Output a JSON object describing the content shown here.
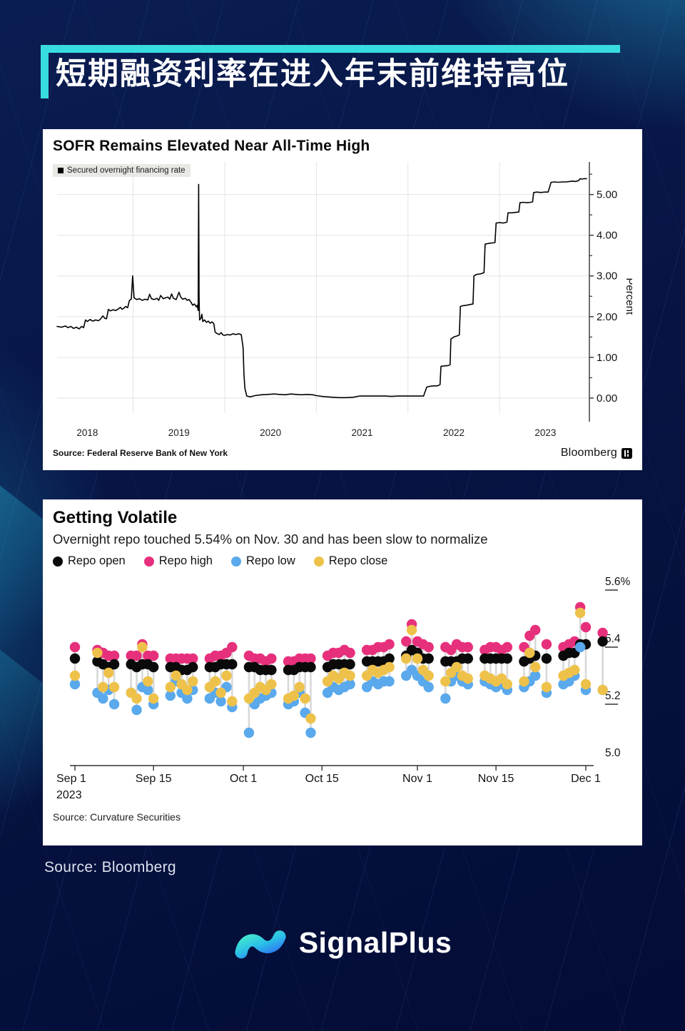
{
  "page": {
    "title": "短期融资利率在进入年末前维持高位",
    "source_note": "Source: Bloomberg",
    "brand": "SignalPlus",
    "colors": {
      "background": "#071342",
      "accent_cyan": "#38dbe0",
      "card": "#ffffff"
    }
  },
  "chart_data": [
    {
      "type": "line",
      "title": "SOFR Remains Elevated Near All-Time High",
      "legend": "Secured overnight financing rate",
      "ylabel": "Percent",
      "y_ticks": [
        0,
        1,
        2,
        3,
        4,
        5
      ],
      "y_tick_labels": [
        "0.00",
        "1.00",
        "2.00",
        "3.00",
        "4.00",
        "5.00"
      ],
      "x_tick_labels": [
        "2018",
        "2019",
        "2020",
        "2021",
        "2022",
        "2023"
      ],
      "x_range": [
        2018.17,
        2023.98
      ],
      "y_range": [
        -0.58,
        5.8
      ],
      "grid": true,
      "legend_position": "top-left",
      "axis_side": "right",
      "line_color": "#000000",
      "grid_color": "#e3e3e0",
      "source": "Source: Federal Reserve Bank of New York",
      "brand": "Bloomberg",
      "points": [
        [
          2018.17,
          1.76
        ],
        [
          2018.22,
          1.74
        ],
        [
          2018.26,
          1.77
        ],
        [
          2018.29,
          1.73
        ],
        [
          2018.32,
          1.76
        ],
        [
          2018.35,
          1.71
        ],
        [
          2018.38,
          1.74
        ],
        [
          2018.41,
          1.7
        ],
        [
          2018.44,
          1.76
        ],
        [
          2018.46,
          1.73
        ],
        [
          2018.48,
          1.92
        ],
        [
          2018.5,
          1.88
        ],
        [
          2018.53,
          1.93
        ],
        [
          2018.56,
          1.89
        ],
        [
          2018.59,
          1.92
        ],
        [
          2018.62,
          1.9
        ],
        [
          2018.64,
          1.93
        ],
        [
          2018.67,
          2.02
        ],
        [
          2018.69,
          1.96
        ],
        [
          2018.71,
          1.95
        ],
        [
          2018.73,
          2.18
        ],
        [
          2018.75,
          2.14
        ],
        [
          2018.78,
          2.17
        ],
        [
          2018.81,
          2.15
        ],
        [
          2018.84,
          2.19
        ],
        [
          2018.86,
          2.23
        ],
        [
          2018.88,
          2.18
        ],
        [
          2018.9,
          2.21
        ],
        [
          2018.92,
          2.25
        ],
        [
          2018.94,
          2.22
        ],
        [
          2018.96,
          2.4
        ],
        [
          2018.98,
          2.43
        ],
        [
          2018.995,
          3.0
        ],
        [
          2019.01,
          2.46
        ],
        [
          2019.04,
          2.42
        ],
        [
          2019.07,
          2.44
        ],
        [
          2019.1,
          2.4
        ],
        [
          2019.13,
          2.43
        ],
        [
          2019.16,
          2.41
        ],
        [
          2019.18,
          2.55
        ],
        [
          2019.2,
          2.44
        ],
        [
          2019.23,
          2.42
        ],
        [
          2019.26,
          2.45
        ],
        [
          2019.28,
          2.4
        ],
        [
          2019.3,
          2.52
        ],
        [
          2019.33,
          2.44
        ],
        [
          2019.35,
          2.46
        ],
        [
          2019.38,
          2.48
        ],
        [
          2019.4,
          2.43
        ],
        [
          2019.42,
          2.56
        ],
        [
          2019.44,
          2.45
        ],
        [
          2019.47,
          2.42
        ],
        [
          2019.5,
          2.6
        ],
        [
          2019.52,
          2.48
        ],
        [
          2019.54,
          2.43
        ],
        [
          2019.57,
          2.45
        ],
        [
          2019.59,
          2.4
        ],
        [
          2019.61,
          2.42
        ],
        [
          2019.63,
          2.36
        ],
        [
          2019.65,
          2.28
        ],
        [
          2019.67,
          2.31
        ],
        [
          2019.69,
          2.24
        ],
        [
          2019.7,
          2.28
        ],
        [
          2019.71,
          2.15
        ],
        [
          2019.715,
          5.25
        ],
        [
          2019.72,
          2.5
        ],
        [
          2019.725,
          1.92
        ],
        [
          2019.74,
          1.96
        ],
        [
          2019.75,
          2.06
        ],
        [
          2019.76,
          1.88
        ],
        [
          2019.78,
          1.92
        ],
        [
          2019.8,
          1.86
        ],
        [
          2019.82,
          1.89
        ],
        [
          2019.84,
          1.84
        ],
        [
          2019.86,
          1.87
        ],
        [
          2019.88,
          1.83
        ],
        [
          2019.895,
          1.62
        ],
        [
          2019.92,
          1.58
        ],
        [
          2019.94,
          1.56
        ],
        [
          2019.96,
          1.61
        ],
        [
          2019.98,
          1.55
        ],
        [
          2020.0,
          1.54
        ],
        [
          2020.03,
          1.56
        ],
        [
          2020.06,
          1.55
        ],
        [
          2020.09,
          1.58
        ],
        [
          2020.12,
          1.56
        ],
        [
          2020.15,
          1.58
        ],
        [
          2020.18,
          1.56
        ],
        [
          2020.2,
          1.24
        ],
        [
          2020.21,
          0.58
        ],
        [
          2020.22,
          0.24
        ],
        [
          2020.24,
          0.05
        ],
        [
          2020.28,
          0.03
        ],
        [
          2020.33,
          0.06
        ],
        [
          2020.4,
          0.08
        ],
        [
          2020.47,
          0.09
        ],
        [
          2020.54,
          0.1
        ],
        [
          2020.6,
          0.09
        ],
        [
          2020.66,
          0.08
        ],
        [
          2020.72,
          0.1
        ],
        [
          2020.78,
          0.09
        ],
        [
          2020.84,
          0.08
        ],
        [
          2020.9,
          0.09
        ],
        [
          2020.96,
          0.08
        ],
        [
          2021.0,
          0.06
        ],
        [
          2021.06,
          0.04
        ],
        [
          2021.12,
          0.03
        ],
        [
          2021.18,
          0.02
        ],
        [
          2021.25,
          0.01
        ],
        [
          2021.33,
          0.01
        ],
        [
          2021.4,
          0.02
        ],
        [
          2021.47,
          0.05
        ],
        [
          2021.54,
          0.05
        ],
        [
          2021.61,
          0.05
        ],
        [
          2021.68,
          0.05
        ],
        [
          2021.75,
          0.05
        ],
        [
          2021.82,
          0.04
        ],
        [
          2021.89,
          0.05
        ],
        [
          2021.96,
          0.05
        ],
        [
          2022.03,
          0.05
        ],
        [
          2022.1,
          0.05
        ],
        [
          2022.17,
          0.05
        ],
        [
          2022.205,
          0.27
        ],
        [
          2022.24,
          0.29
        ],
        [
          2022.28,
          0.3
        ],
        [
          2022.32,
          0.3
        ],
        [
          2022.35,
          0.33
        ],
        [
          2022.36,
          0.78
        ],
        [
          2022.4,
          0.79
        ],
        [
          2022.44,
          0.8
        ],
        [
          2022.46,
          0.82
        ],
        [
          2022.468,
          1.45
        ],
        [
          2022.5,
          1.5
        ],
        [
          2022.54,
          1.53
        ],
        [
          2022.56,
          1.55
        ],
        [
          2022.572,
          2.25
        ],
        [
          2022.6,
          2.27
        ],
        [
          2022.64,
          2.28
        ],
        [
          2022.68,
          2.3
        ],
        [
          2022.71,
          2.31
        ],
        [
          2022.72,
          3.0
        ],
        [
          2022.75,
          3.04
        ],
        [
          2022.79,
          3.05
        ],
        [
          2022.83,
          3.08
        ],
        [
          2022.842,
          3.78
        ],
        [
          2022.88,
          3.8
        ],
        [
          2022.92,
          3.81
        ],
        [
          2022.95,
          3.82
        ],
        [
          2022.962,
          4.3
        ],
        [
          2023.0,
          4.31
        ],
        [
          2023.04,
          4.3
        ],
        [
          2023.08,
          4.32
        ],
        [
          2023.092,
          4.55
        ],
        [
          2023.13,
          4.55
        ],
        [
          2023.17,
          4.56
        ],
        [
          2023.21,
          4.57
        ],
        [
          2023.222,
          4.8
        ],
        [
          2023.26,
          4.81
        ],
        [
          2023.3,
          4.8
        ],
        [
          2023.34,
          4.81
        ],
        [
          2023.36,
          4.82
        ],
        [
          2023.372,
          5.05
        ],
        [
          2023.41,
          5.06
        ],
        [
          2023.45,
          5.05
        ],
        [
          2023.49,
          5.06
        ],
        [
          2023.53,
          5.06
        ],
        [
          2023.562,
          5.3
        ],
        [
          2023.6,
          5.31
        ],
        [
          2023.64,
          5.3
        ],
        [
          2023.68,
          5.31
        ],
        [
          2023.72,
          5.31
        ],
        [
          2023.76,
          5.32
        ],
        [
          2023.8,
          5.33
        ],
        [
          2023.83,
          5.32
        ],
        [
          2023.86,
          5.34
        ],
        [
          2023.88,
          5.39
        ],
        [
          2023.9,
          5.38
        ],
        [
          2023.92,
          5.39
        ],
        [
          2023.95,
          5.39
        ]
      ]
    },
    {
      "type": "scatter",
      "title": "Getting Volatile",
      "subtitle": "Overnight repo touched 5.54% on Nov. 30 and has been slow to normalize",
      "legend": [
        {
          "label": "Repo open",
          "color": "#0a0a0a"
        },
        {
          "label": "Repo high",
          "color": "#e7307c"
        },
        {
          "label": "Repo low",
          "color": "#5aa9ec"
        },
        {
          "label": "Repo close",
          "color": "#eec24a"
        }
      ],
      "y_tick_labels": [
        "5.6%",
        "5.4",
        "5.2",
        "5.0"
      ],
      "y_tick_values": [
        5.6,
        5.4,
        5.2,
        5.0
      ],
      "x_ticks": [
        {
          "label": "Sep 1",
          "sublabel": "2023",
          "day": 0
        },
        {
          "label": "Sep 15",
          "day": 14
        },
        {
          "label": "Oct 1",
          "day": 30
        },
        {
          "label": "Oct 15",
          "day": 44
        },
        {
          "label": "Nov 1",
          "day": 61
        },
        {
          "label": "Nov 15",
          "day": 75
        },
        {
          "label": "Dec 1",
          "day": 91
        }
      ],
      "x_range_days": [
        -2,
        96
      ],
      "y_range": [
        4.99,
        5.62
      ],
      "stem_color": "#d8d8d8",
      "source": "Source: Curvature Securities",
      "days": {
        "dates": [
          "Sep 1",
          "Sep 5",
          "Sep 6",
          "Sep 7",
          "Sep 8",
          "Sep 11",
          "Sep 12",
          "Sep 13",
          "Sep 14",
          "Sep 15",
          "Sep 18",
          "Sep 19",
          "Sep 20",
          "Sep 21",
          "Sep 22",
          "Sep 25",
          "Sep 26",
          "Sep 27",
          "Sep 28",
          "Sep 29",
          "Oct 2",
          "Oct 3",
          "Oct 4",
          "Oct 5",
          "Oct 6",
          "Oct 9",
          "Oct 10",
          "Oct 11",
          "Oct 12",
          "Oct 13",
          "Oct 16",
          "Oct 17",
          "Oct 18",
          "Oct 19",
          "Oct 20",
          "Oct 23",
          "Oct 24",
          "Oct 25",
          "Oct 26",
          "Oct 27",
          "Oct 30",
          "Oct 31",
          "Nov 1",
          "Nov 2",
          "Nov 3",
          "Nov 6",
          "Nov 7",
          "Nov 8",
          "Nov 9",
          "Nov 10",
          "Nov 13",
          "Nov 14",
          "Nov 15",
          "Nov 16",
          "Nov 17",
          "Nov 20",
          "Nov 21",
          "Nov 22",
          "Nov 24",
          "Nov 27",
          "Nov 28",
          "Nov 29",
          "Nov 30",
          "Dec 1",
          "Dec 4"
        ],
        "x": [
          0,
          4,
          5,
          6,
          7,
          10,
          11,
          12,
          13,
          14,
          17,
          18,
          19,
          20,
          21,
          24,
          25,
          26,
          27,
          28,
          31,
          32,
          33,
          34,
          35,
          38,
          39,
          40,
          41,
          42,
          45,
          46,
          47,
          48,
          49,
          52,
          53,
          54,
          55,
          56,
          59,
          60,
          61,
          62,
          63,
          66,
          67,
          68,
          69,
          70,
          73,
          74,
          75,
          76,
          77,
          80,
          81,
          82,
          84,
          87,
          88,
          89,
          90,
          91,
          94
        ],
        "open": [
          5.36,
          5.35,
          5.34,
          5.33,
          5.34,
          5.34,
          5.33,
          5.34,
          5.34,
          5.33,
          5.33,
          5.33,
          5.32,
          5.32,
          5.33,
          5.33,
          5.33,
          5.34,
          5.34,
          5.34,
          5.33,
          5.33,
          5.32,
          5.32,
          5.32,
          5.32,
          5.32,
          5.33,
          5.33,
          5.33,
          5.33,
          5.34,
          5.34,
          5.34,
          5.34,
          5.35,
          5.35,
          5.35,
          5.35,
          5.36,
          5.37,
          5.39,
          5.38,
          5.36,
          5.36,
          5.35,
          5.35,
          5.35,
          5.36,
          5.36,
          5.36,
          5.36,
          5.36,
          5.36,
          5.36,
          5.35,
          5.36,
          5.37,
          5.36,
          5.37,
          5.38,
          5.38,
          5.41,
          5.41,
          5.42
        ],
        "high": [
          5.4,
          5.39,
          5.38,
          5.37,
          5.37,
          5.37,
          5.37,
          5.41,
          5.37,
          5.37,
          5.36,
          5.36,
          5.36,
          5.36,
          5.36,
          5.36,
          5.37,
          5.37,
          5.38,
          5.4,
          5.37,
          5.36,
          5.36,
          5.35,
          5.36,
          5.35,
          5.35,
          5.36,
          5.36,
          5.36,
          5.37,
          5.38,
          5.38,
          5.39,
          5.38,
          5.39,
          5.39,
          5.4,
          5.4,
          5.41,
          5.42,
          5.48,
          5.42,
          5.41,
          5.4,
          5.4,
          5.39,
          5.41,
          5.4,
          5.4,
          5.39,
          5.4,
          5.4,
          5.39,
          5.4,
          5.4,
          5.44,
          5.46,
          5.41,
          5.4,
          5.41,
          5.42,
          5.54,
          5.47,
          5.45
        ],
        "low": [
          5.27,
          5.24,
          5.22,
          5.25,
          5.2,
          5.24,
          5.18,
          5.26,
          5.25,
          5.2,
          5.23,
          5.28,
          5.24,
          5.22,
          5.25,
          5.22,
          5.24,
          5.21,
          5.26,
          5.19,
          5.1,
          5.2,
          5.22,
          5.23,
          5.24,
          5.2,
          5.21,
          5.24,
          5.17,
          5.1,
          5.24,
          5.26,
          5.25,
          5.26,
          5.27,
          5.26,
          5.28,
          5.27,
          5.28,
          5.28,
          5.3,
          5.32,
          5.3,
          5.28,
          5.26,
          5.22,
          5.28,
          5.3,
          5.28,
          5.27,
          5.28,
          5.27,
          5.26,
          5.27,
          5.25,
          5.26,
          5.28,
          5.3,
          5.24,
          5.27,
          5.28,
          5.3,
          5.4,
          5.25,
          5.25
        ],
        "close": [
          5.3,
          5.38,
          5.26,
          5.31,
          5.26,
          5.24,
          5.22,
          5.4,
          5.28,
          5.22,
          5.26,
          5.3,
          5.27,
          5.25,
          5.28,
          5.26,
          5.28,
          5.24,
          5.3,
          5.21,
          5.22,
          5.24,
          5.26,
          5.25,
          5.27,
          5.22,
          5.23,
          5.26,
          5.22,
          5.15,
          5.28,
          5.3,
          5.29,
          5.31,
          5.3,
          5.3,
          5.32,
          5.31,
          5.32,
          5.33,
          5.36,
          5.46,
          5.36,
          5.32,
          5.3,
          5.28,
          5.31,
          5.33,
          5.3,
          5.29,
          5.3,
          5.29,
          5.28,
          5.29,
          5.27,
          5.28,
          5.38,
          5.33,
          5.26,
          5.3,
          5.31,
          5.32,
          5.52,
          5.27,
          5.25
        ]
      }
    }
  ]
}
